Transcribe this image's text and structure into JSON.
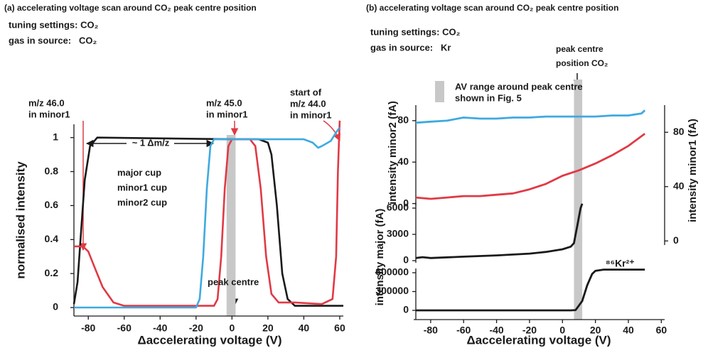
{
  "chart_data": [
    {
      "type": "line",
      "title": "(a) accelerating voltage scan around CO₂ peak centre position",
      "notes": [
        "tuning settings: CO₂",
        "gas in source:   CO₂"
      ],
      "xlabel": "Δaccelerating voltage (V)",
      "ylabel": "normalised intensity",
      "xlim": [
        -88,
        62
      ],
      "xticks": [
        -80,
        -60,
        -40,
        -20,
        0,
        20,
        40,
        60
      ],
      "ylim": [
        -0.05,
        1.12
      ],
      "yticks": [
        0,
        0.2,
        0.4,
        0.6,
        0.8,
        1
      ],
      "highlight": [
        -3,
        2
      ],
      "highlight_color": "#c8c8c8",
      "series": [
        {
          "name": "major cup",
          "color": "#1a1a1a",
          "x": [
            -88,
            -86,
            -84,
            -82,
            -79,
            -75,
            0,
            15,
            20,
            22,
            25,
            28,
            31,
            35,
            62
          ],
          "values": [
            0.02,
            0.15,
            0.45,
            0.75,
            0.95,
            1.0,
            0.99,
            0.99,
            0.97,
            0.9,
            0.6,
            0.2,
            0.05,
            0.01,
            0.01
          ]
        },
        {
          "name": "minor1 cup",
          "color": "#e03a45",
          "x": [
            -88,
            -83,
            -80,
            -77,
            -72,
            -66,
            -60,
            -10,
            -8,
            -6,
            -4,
            -2,
            0,
            10,
            13,
            16,
            19,
            22,
            26,
            35,
            50,
            56,
            58,
            59,
            60
          ],
          "values": [
            0.36,
            0.36,
            0.33,
            0.25,
            0.12,
            0.03,
            0.01,
            0.01,
            0.05,
            0.3,
            0.7,
            0.95,
            0.99,
            0.99,
            0.95,
            0.7,
            0.3,
            0.08,
            0.03,
            0.03,
            0.02,
            0.05,
            0.3,
            0.8,
            1.1
          ]
        },
        {
          "name": "minor2 cup",
          "color": "#3fa9e0",
          "x": [
            -88,
            -20,
            -18,
            -16,
            -14,
            -12,
            -10,
            20,
            40,
            45,
            48,
            50,
            55,
            58,
            60
          ],
          "values": [
            0.0,
            0.0,
            0.05,
            0.3,
            0.7,
            0.95,
            0.99,
            0.99,
            0.99,
            0.97,
            0.94,
            0.95,
            0.98,
            1.03,
            1.06
          ]
        }
      ],
      "annotations": [
        {
          "lines": [
            "m/z 46.0",
            "in minor1"
          ],
          "colors": [
            "#3fa9e0",
            "#e03a45"
          ]
        },
        {
          "lines": [
            "m/z 45.0",
            "in minor1"
          ],
          "colors": [
            "#e03a45",
            "#e03a45"
          ]
        },
        {
          "lines": [
            "start of",
            "m/z 44.0",
            "in minor1"
          ],
          "colors": [
            "#1a1a1a",
            "#1a1a1a",
            "#e03a45"
          ]
        },
        {
          "lines": [
            "~ 1 Δm/z"
          ],
          "colors": [
            "#1a1a1a"
          ]
        },
        {
          "lines": [
            "peak centre"
          ],
          "colors": [
            "#1a1a1a"
          ]
        }
      ]
    },
    {
      "type": "line",
      "title": "(b) accelerating voltage scan around CO₂ peak centre position",
      "notes": [
        "tuning settings: CO₂",
        "gas in source:   Kr"
      ],
      "xlabel": "Δaccelerating voltage (V)",
      "xlim": [
        -89,
        62
      ],
      "xticks": [
        -80,
        -60,
        -40,
        -20,
        0,
        20,
        40,
        60
      ],
      "highlight": [
        7,
        12
      ],
      "highlight_color": "#c8c8c8",
      "highlight_label": [
        "AV range around peak centre",
        "shown in Fig. 5"
      ],
      "peak_label": [
        "peak centre",
        "position CO₂"
      ],
      "panels": [
        {
          "ylabel": "intensity minor2 (fA)",
          "ylim": [
            -40,
            95
          ],
          "yticks": [
            0,
            40,
            80
          ],
          "color": "#3fa9e0",
          "y2label": "intensity minor1 (fA)",
          "y2lim": [
            -3,
            100
          ],
          "y2ticks": [
            0,
            40,
            80
          ],
          "y2color": "#e03a45",
          "series": [
            {
              "color": "#3fa9e0",
              "x": [
                -89,
                -80,
                -70,
                -60,
                -50,
                -40,
                -30,
                -20,
                -10,
                0,
                10,
                20,
                30,
                40,
                48,
                50
              ],
              "values": [
                78,
                79,
                80,
                83,
                82,
                82,
                83,
                83,
                84,
                84,
                84,
                84,
                85,
                85,
                87,
                90
              ]
            },
            {
              "color": "#e03a45",
              "axis": "y2",
              "x": [
                -89,
                -80,
                -70,
                -60,
                -50,
                -40,
                -30,
                -20,
                -10,
                0,
                10,
                20,
                30,
                40,
                50
              ],
              "values": [
                32,
                31,
                32,
                33,
                33,
                34,
                35,
                38,
                42,
                48,
                52,
                57,
                63,
                70,
                79
              ]
            }
          ]
        },
        {
          "ylabel": "intensity major (fA)",
          "ylim": [
            -650,
            6650
          ],
          "yticks": [
            0,
            3000,
            6000
          ],
          "color": "#1a1a1a",
          "series": [
            {
              "color": "#1a1a1a",
              "x": [
                -89,
                -85,
                -80,
                -60,
                -40,
                -20,
                -10,
                0,
                5,
                7,
                8,
                9,
                10,
                11,
                12
              ],
              "values": [
                300,
                400,
                300,
                450,
                600,
                800,
                1000,
                1300,
                1600,
                2000,
                3000,
                4000,
                5000,
                6000,
                6500
              ]
            }
          ]
        },
        {
          "ylim": [
            -147000,
            668000
          ],
          "yticks": [
            0,
            300000,
            600000
          ],
          "color": "#1a1a1a",
          "label": "⁸⁶Kr²⁺",
          "series": [
            {
              "color": "#1a1a1a",
              "x": [
                -89,
                5,
                8,
                12,
                15,
                18,
                20,
                25,
                50
              ],
              "values": [
                0,
                0,
                5000,
                150000,
                400000,
                580000,
                630000,
                650000,
                650000
              ]
            }
          ]
        }
      ]
    }
  ]
}
